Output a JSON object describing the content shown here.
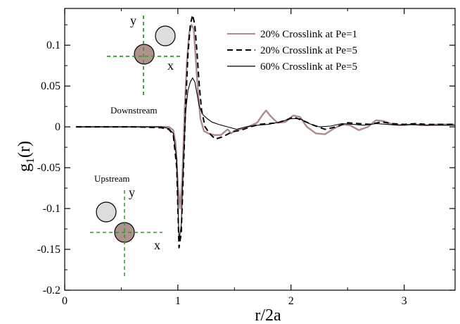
{
  "chart_data": {
    "type": "line",
    "xlabel": "r/2a",
    "ylabel_main": "g",
    "ylabel_sub": "1",
    "ylabel_tail": "(r)",
    "xlim": [
      0,
      3.45
    ],
    "ylim": [
      -0.2,
      0.145
    ],
    "xticks": [
      0,
      1,
      2,
      3
    ],
    "yticks": [
      -0.2,
      -0.15,
      -0.1,
      -0.05,
      0,
      0.05,
      0.1
    ],
    "ytick_labels": [
      "-0.2",
      "-0.15",
      "-0.1",
      "-0.05",
      "0",
      "0.05",
      "0.1"
    ],
    "xtick_labels": [
      "0",
      "1",
      "2",
      "3"
    ],
    "legend_position": "top-right",
    "series": [
      {
        "name": "20% Crosslink at Pe=1",
        "color": "#b08a8a",
        "dash": "solid",
        "x": [
          0.1,
          0.6,
          0.85,
          0.92,
          0.96,
          0.98,
          1.0,
          1.02,
          1.04,
          1.06,
          1.08,
          1.1,
          1.12,
          1.14,
          1.16,
          1.18,
          1.2,
          1.23,
          1.27,
          1.32,
          1.38,
          1.44,
          1.47,
          1.5,
          1.55,
          1.62,
          1.7,
          1.75,
          1.78,
          1.82,
          1.88,
          1.95,
          2.02,
          2.08,
          2.14,
          2.22,
          2.3,
          2.38,
          2.45,
          2.52,
          2.6,
          2.68,
          2.75,
          2.82,
          2.9,
          3.0,
          3.1,
          3.2,
          3.3,
          3.45
        ],
        "y": [
          0.0,
          0.0,
          0.0,
          0.0,
          -0.004,
          -0.02,
          -0.07,
          -0.1,
          -0.06,
          0.02,
          0.08,
          0.115,
          0.125,
          0.12,
          0.08,
          0.04,
          0.01,
          -0.005,
          -0.008,
          -0.01,
          -0.01,
          -0.003,
          -0.008,
          -0.005,
          -0.003,
          0.0,
          0.005,
          0.015,
          0.02,
          0.013,
          0.005,
          0.006,
          0.014,
          0.012,
          0.0,
          -0.008,
          -0.009,
          -0.002,
          0.003,
          0.002,
          -0.004,
          0.0,
          0.008,
          0.007,
          0.003,
          0.002,
          0.003,
          0.002,
          0.003,
          0.003
        ]
      },
      {
        "name": "20% Crosslink at Pe=5",
        "color": "#000000",
        "dash": "dashed",
        "x": [
          0.1,
          0.6,
          0.85,
          0.92,
          0.96,
          0.99,
          1.01,
          1.03,
          1.05,
          1.07,
          1.09,
          1.11,
          1.13,
          1.15,
          1.17,
          1.19,
          1.21,
          1.24,
          1.28,
          1.33,
          1.4,
          1.48,
          1.56,
          1.64,
          1.72,
          1.8,
          1.88,
          1.95,
          2.02,
          2.1,
          2.2,
          2.3,
          2.4,
          2.5,
          2.6,
          2.7,
          2.8,
          2.9,
          3.0,
          3.1,
          3.2,
          3.3,
          3.45
        ],
        "y": [
          0.0,
          0.0,
          -0.001,
          -0.003,
          -0.01,
          -0.05,
          -0.148,
          -0.13,
          -0.05,
          0.03,
          0.09,
          0.125,
          0.137,
          0.125,
          0.09,
          0.05,
          0.02,
          0.0,
          -0.008,
          -0.015,
          -0.012,
          -0.006,
          -0.004,
          0.0,
          0.003,
          0.004,
          0.005,
          0.008,
          0.012,
          0.008,
          0.002,
          -0.003,
          0.0,
          0.005,
          0.004,
          0.003,
          0.006,
          0.004,
          0.003,
          0.004,
          0.003,
          0.003,
          0.003
        ]
      },
      {
        "name": "60% Crosslink at Pe=5",
        "color": "#000000",
        "dash": "solid",
        "x": [
          0.1,
          0.6,
          0.85,
          0.92,
          0.96,
          0.99,
          1.01,
          1.03,
          1.05,
          1.07,
          1.09,
          1.11,
          1.13,
          1.15,
          1.17,
          1.19,
          1.22,
          1.26,
          1.3,
          1.36,
          1.44,
          1.52,
          1.6,
          1.7,
          1.8,
          1.9,
          2.0,
          2.08,
          2.16,
          2.25,
          2.35,
          2.45,
          2.55,
          2.65,
          2.75,
          2.85,
          2.95,
          3.05,
          3.15,
          3.25,
          3.35,
          3.45
        ],
        "y": [
          0.0,
          0.0,
          0.0,
          -0.002,
          -0.008,
          -0.04,
          -0.14,
          -0.12,
          -0.04,
          0.02,
          0.045,
          0.055,
          0.06,
          0.055,
          0.04,
          0.025,
          0.015,
          0.01,
          0.006,
          0.003,
          0.0,
          -0.003,
          0.0,
          0.002,
          0.003,
          0.006,
          0.01,
          0.01,
          0.004,
          0.0,
          0.001,
          0.004,
          0.003,
          0.002,
          0.004,
          0.003,
          0.002,
          0.003,
          0.002,
          0.002,
          0.002,
          0.002
        ]
      }
    ],
    "insets": [
      {
        "label": "Downstream",
        "axis_y": "y",
        "axis_x": "x"
      },
      {
        "label": "Upstream",
        "axis_y": "y",
        "axis_x": "x"
      }
    ],
    "colors": {
      "particle_center": "#b0928c",
      "particle_neighbor": "#dddddd",
      "crosshair": "#2a9a2a"
    }
  }
}
